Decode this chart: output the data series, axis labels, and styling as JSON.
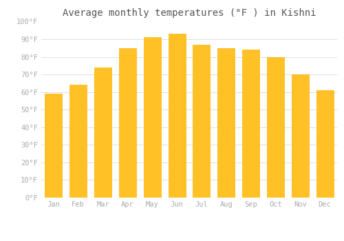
{
  "title": "Average monthly temperatures (°F ) in Kishni",
  "months": [
    "Jan",
    "Feb",
    "Mar",
    "Apr",
    "May",
    "Jun",
    "Jul",
    "Aug",
    "Sep",
    "Oct",
    "Nov",
    "Dec"
  ],
  "values": [
    59,
    64,
    74,
    85,
    91,
    93,
    87,
    85,
    84,
    80,
    70,
    61
  ],
  "bar_color_face": "#FFC125",
  "bar_color_edge": "#FFB300",
  "background_color": "#FFFFFF",
  "grid_color": "#DDDDDD",
  "ylim": [
    0,
    100
  ],
  "yticks": [
    0,
    10,
    20,
    30,
    40,
    50,
    60,
    70,
    80,
    90,
    100
  ],
  "ytick_labels": [
    "0°F",
    "10°F",
    "20°F",
    "30°F",
    "40°F",
    "50°F",
    "60°F",
    "70°F",
    "80°F",
    "90°F",
    "100°F"
  ],
  "title_fontsize": 10,
  "tick_fontsize": 7.5,
  "tick_color": "#AAAAAA",
  "title_color": "#555555",
  "bar_width": 0.7
}
